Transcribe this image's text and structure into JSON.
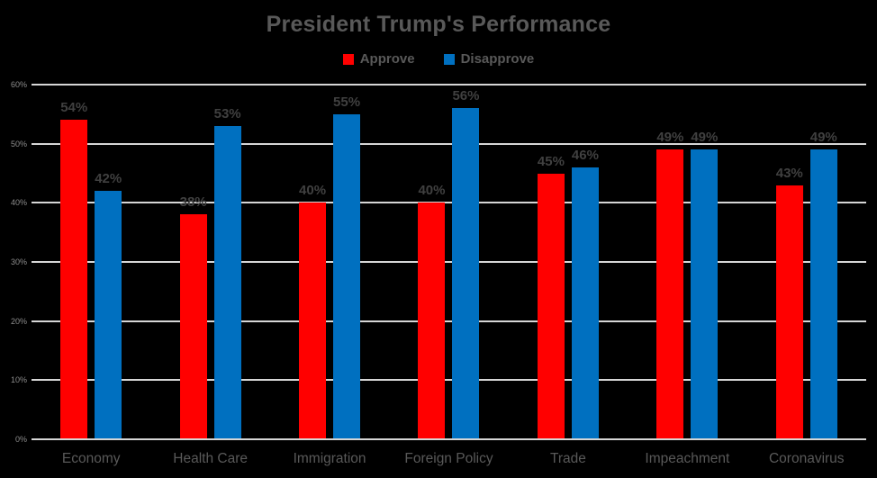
{
  "title": "President Trump's Performance",
  "legend": [
    {
      "label": "Approve",
      "color": "#ff0000"
    },
    {
      "label": "Disapprove",
      "color": "#0070c0"
    }
  ],
  "chart_data": {
    "type": "bar",
    "title": "President Trump's Performance",
    "categories": [
      "Economy",
      "Health Care",
      "Immigration",
      "Foreign Policy",
      "Trade",
      "Impeachment",
      "Coronavirus"
    ],
    "series": [
      {
        "name": "Approve",
        "color": "#ff0000",
        "values": [
          54,
          38,
          40,
          40,
          45,
          49,
          43
        ]
      },
      {
        "name": "Disapprove",
        "color": "#0070c0",
        "values": [
          42,
          53,
          55,
          56,
          46,
          49,
          49
        ]
      }
    ],
    "data_labels": {
      "Approve": [
        "54%",
        "38%",
        "40%",
        "40%",
        "45%",
        "49%",
        "43%"
      ],
      "Disapprove": [
        "42%",
        "53%",
        "55%",
        "56%",
        "46%",
        "49%",
        "49%"
      ]
    },
    "xlabel": "",
    "ylabel": "",
    "ylim": [
      0,
      60
    ],
    "ytick_step": 10,
    "ytick_labels": [
      "0%",
      "10%",
      "20%",
      "30%",
      "40%",
      "50%",
      "60%"
    ],
    "grid": true,
    "legend_position": "top",
    "data_label_suffix": "%",
    "colors": {
      "background": "#000000",
      "gridline": "#d6d6d6",
      "title_text": "#595959",
      "data_label_text": "#404040",
      "category_text": "#595959",
      "ytick_text": "#8c8c8c"
    }
  }
}
